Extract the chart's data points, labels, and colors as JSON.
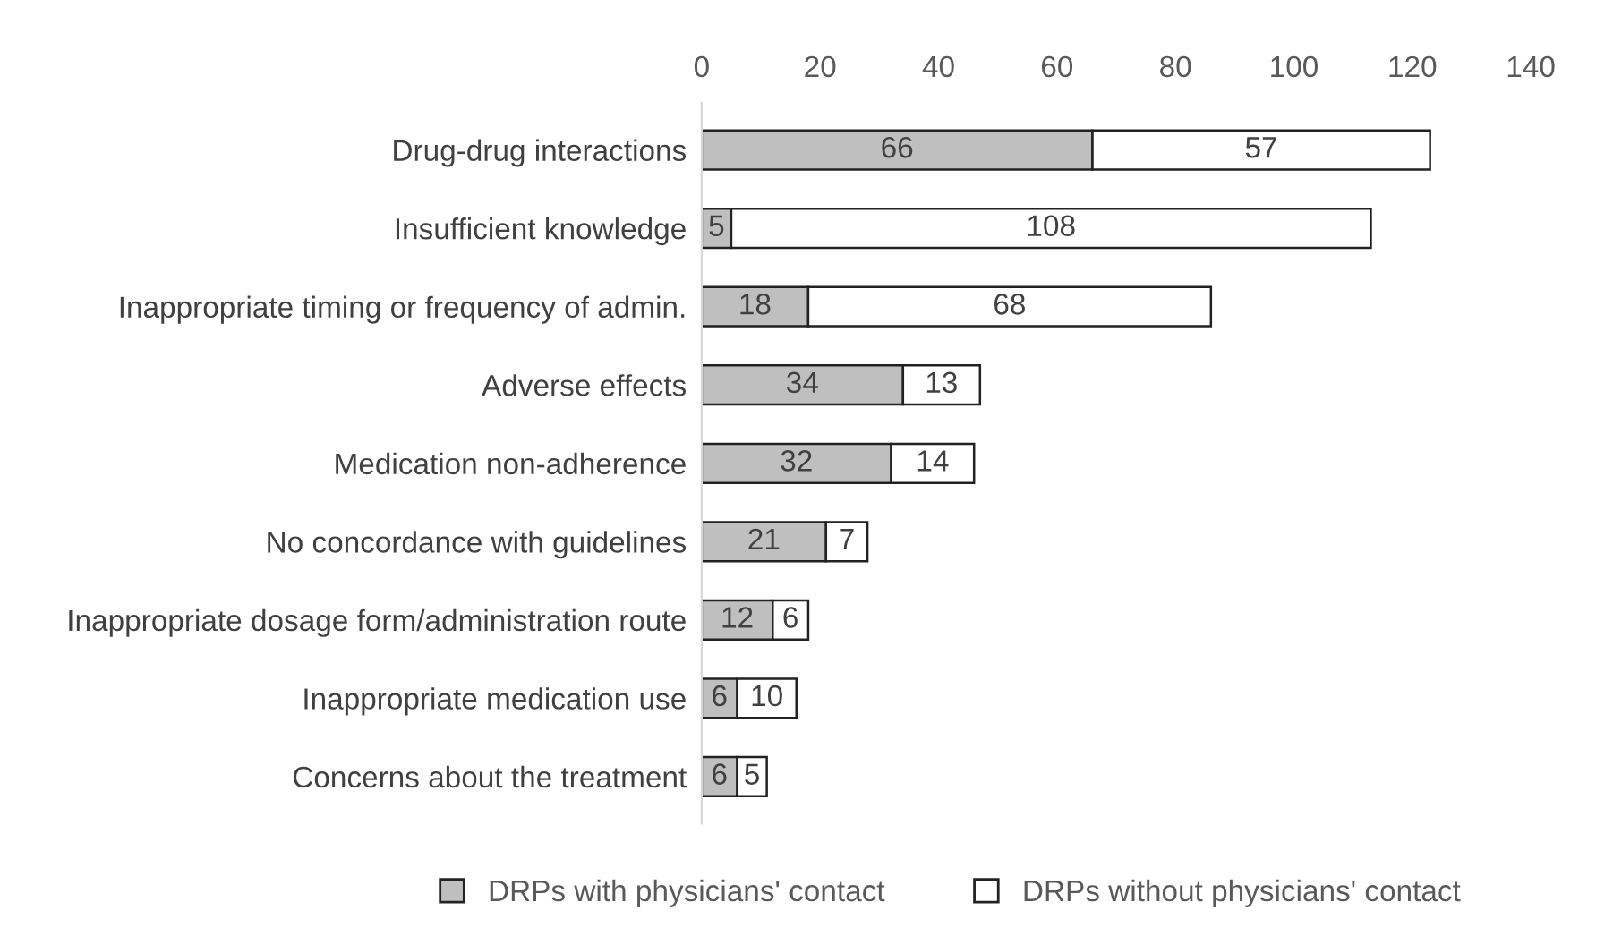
{
  "chart_data": {
    "type": "bar",
    "orientation": "horizontal",
    "stacked": true,
    "data_labels": true,
    "categories": [
      "Drug-drug interactions",
      "Insufficient knowledge",
      "Inappropriate timing or frequency of admin.",
      "Adverse effects",
      "Medication non-adherence",
      "No concordance with guidelines",
      "Inappropriate dosage form/administration route",
      "Inappropriate medication use",
      "Concerns about the treatment"
    ],
    "series": [
      {
        "name": "DRPs with physicians' contact",
        "color": "#bfbfbf",
        "values": [
          66,
          5,
          18,
          34,
          32,
          21,
          12,
          6,
          6
        ]
      },
      {
        "name": "DRPs without physicians' contact",
        "color": "#ffffff",
        "values": [
          57,
          108,
          68,
          13,
          14,
          7,
          6,
          10,
          5
        ]
      }
    ],
    "xlim": [
      0,
      140
    ],
    "xticks": [
      0,
      20,
      40,
      60,
      80,
      100,
      120,
      140
    ],
    "grid": false,
    "legend": "bottom"
  }
}
